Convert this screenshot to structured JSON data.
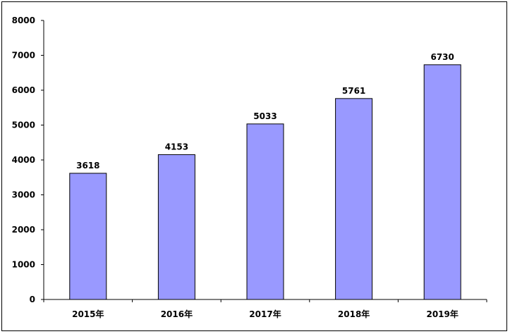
{
  "chart_data": {
    "type": "bar",
    "categories": [
      "2015年",
      "2016年",
      "2017年",
      "2018年",
      "2019年"
    ],
    "values": [
      3618,
      4153,
      5033,
      5761,
      6730
    ],
    "data_labels": [
      "3618",
      "4153",
      "5033",
      "5761",
      "6730"
    ],
    "title": "",
    "xlabel": "",
    "ylabel": "",
    "ylim": [
      0,
      8000
    ],
    "yticks": [
      "0",
      "1000",
      "2000",
      "3000",
      "4000",
      "5000",
      "6000",
      "7000",
      "8000"
    ],
    "grid": false,
    "legend": "none",
    "colors": {
      "bar_fill": "#9999ff",
      "bar_stroke": "#000000",
      "axis": "#000000"
    }
  }
}
